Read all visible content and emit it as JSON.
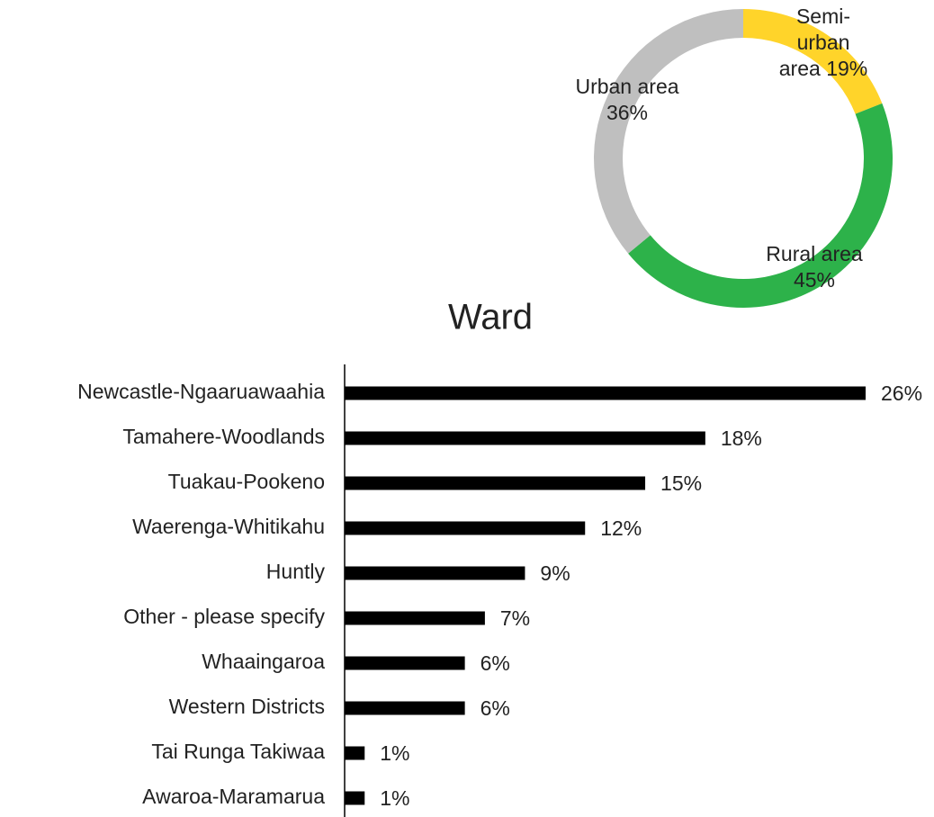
{
  "chart_data": [
    {
      "type": "donut",
      "categories": [
        "Semi-urban area",
        "Rural area",
        "Urban area"
      ],
      "values": [
        19,
        45,
        36
      ],
      "value_labels": [
        "19%",
        "45%",
        "36%"
      ],
      "colors": [
        "#ffd42a",
        "#2db24a",
        "#bfbfbf"
      ]
    },
    {
      "type": "hbar",
      "title": "Ward",
      "categories": [
        "Newcastle-Ngaaruawaahia",
        "Tamahere-Woodlands",
        "Tuakau-Pookeno",
        "Waerenga-Whitikahu",
        "Huntly",
        "Other - please specify",
        "Whaaingaroa",
        "Western Districts",
        "Tai Runga Takiwaa",
        "Awaroa-Maramarua"
      ],
      "values": [
        26,
        18,
        15,
        12,
        9,
        7,
        6,
        6,
        1,
        1
      ],
      "value_labels": [
        "26%",
        "18%",
        "15%",
        "12%",
        "9%",
        "7%",
        "6%",
        "6%",
        "1%",
        "1%"
      ],
      "color": "#000000"
    }
  ]
}
